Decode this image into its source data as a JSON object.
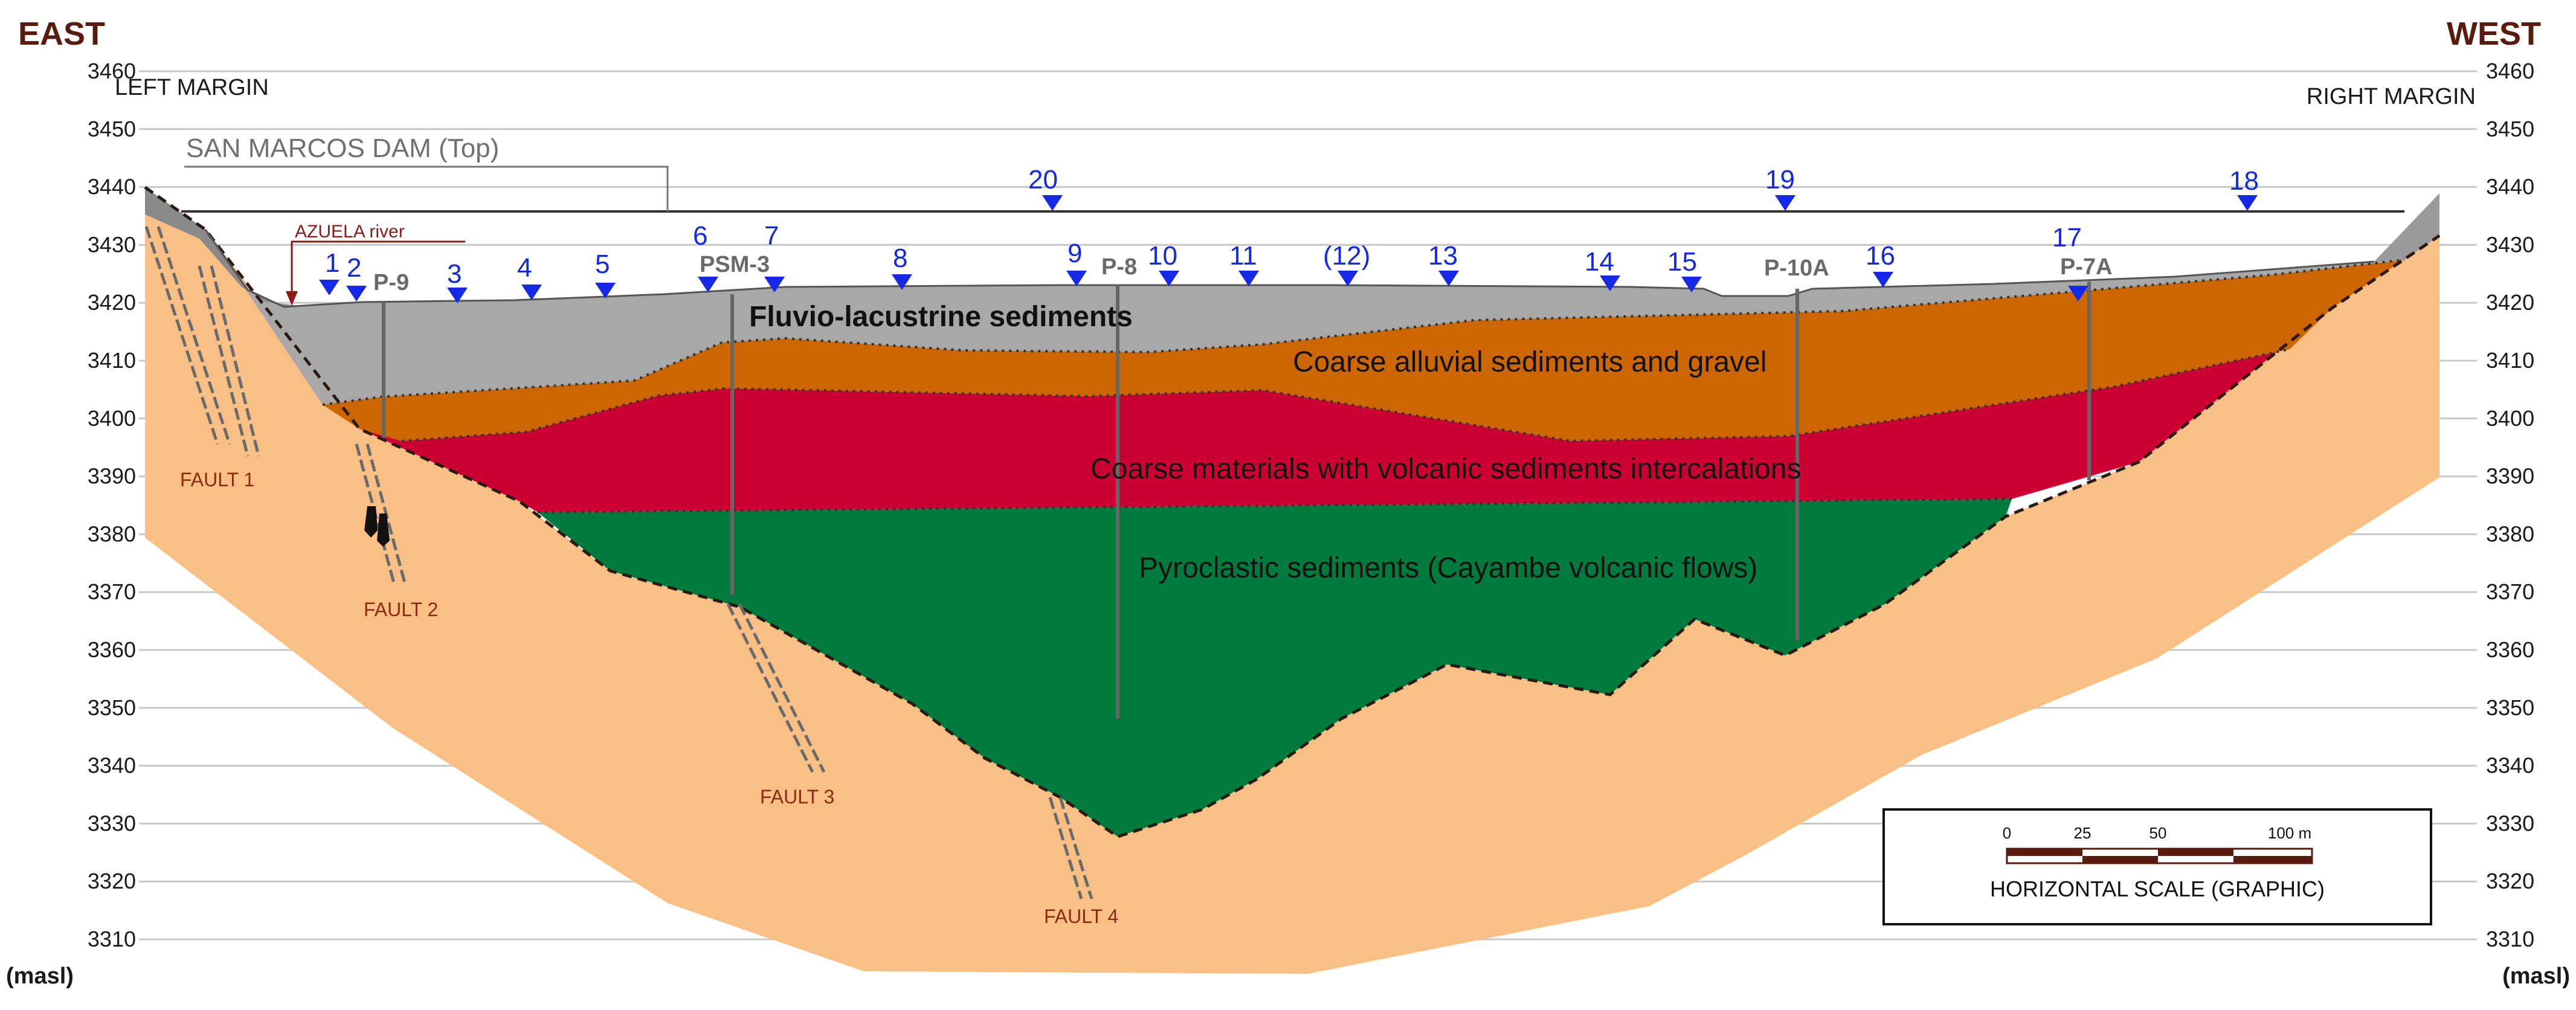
{
  "diagram": {
    "direction_left": "EAST",
    "direction_right": "WEST",
    "margin_left": "LEFT MARGIN",
    "margin_right": "RIGHT MARGIN",
    "unit_left": "(masl)",
    "unit_right": "(masl)",
    "y_axis": {
      "min": 3310,
      "max": 3460,
      "ticks": [
        3460,
        3450,
        3440,
        3430,
        3420,
        3410,
        3400,
        3390,
        3380,
        3370,
        3360,
        3350,
        3340,
        3330,
        3320,
        3310
      ]
    },
    "dam_label": "SAN MARCOS DAM (Top)",
    "river_label": "AZUELA river",
    "layers": [
      {
        "name": "Fluvio-lacustrine sediments",
        "color": "#a8a8a8"
      },
      {
        "name": "Coarse alluvial sediments and gravel",
        "color": "#cc6600"
      },
      {
        "name": "Coarse materials with volcanic sediments intercalations",
        "color": "#cc0033"
      },
      {
        "name": "Pyroclastic sediments (Cayambe volcanic flows)",
        "color": "#007a3d"
      }
    ],
    "bedrock_color": "#f9bf84",
    "boreholes": [
      "P-9",
      "PSM-3",
      "P-8",
      "P-10A",
      "P-7A"
    ],
    "points": [
      "1",
      "2",
      "3",
      "4",
      "5",
      "6",
      "7",
      "8",
      "9",
      "10",
      "11",
      "(12)",
      "13",
      "14",
      "15",
      "16",
      "17",
      "18",
      "19",
      "20"
    ],
    "marker_color": "#1428e6",
    "faults": [
      "FAULT 1",
      "FAULT 2",
      "FAULT 3",
      "FAULT 4"
    ],
    "scale": {
      "ticks": [
        "0",
        "25",
        "50",
        "100 m"
      ],
      "title": "HORIZONTAL SCALE (GRAPHIC)"
    }
  }
}
